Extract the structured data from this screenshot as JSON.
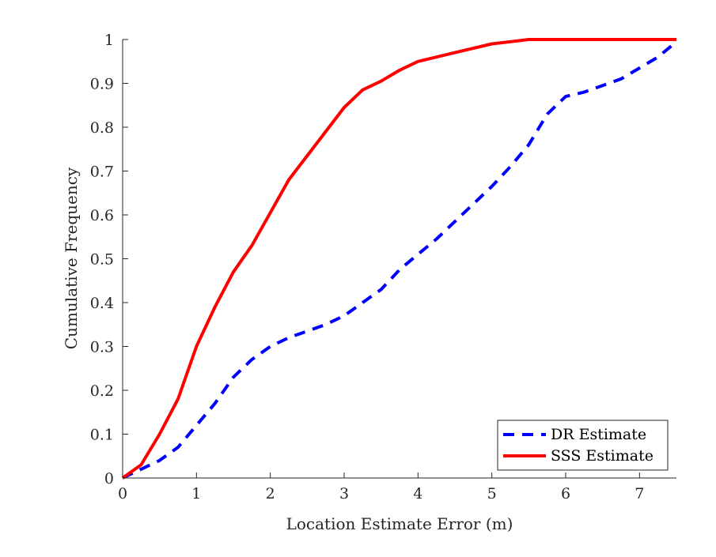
{
  "chart_data": {
    "type": "line",
    "title": "",
    "xlabel": "Location Estimate Error (m)",
    "ylabel": "Cumulative Frequency",
    "xlim": [
      0,
      7.5
    ],
    "ylim": [
      0,
      1
    ],
    "xticks": [
      0,
      1,
      2,
      3,
      4,
      5,
      6,
      7
    ],
    "yticks": [
      0,
      0.1,
      0.2,
      0.3,
      0.4,
      0.5,
      0.6,
      0.7,
      0.8,
      0.9,
      1
    ],
    "xtick_labels": [
      "0",
      "1",
      "2",
      "3",
      "4",
      "5",
      "6",
      "7"
    ],
    "ytick_labels": [
      "0",
      "0.1",
      "0.2",
      "0.3",
      "0.4",
      "0.5",
      "0.6",
      "0.7",
      "0.8",
      "0.9",
      "1"
    ],
    "grid": false,
    "legend_position": "bottom-right",
    "series": [
      {
        "name": "DR Estimate",
        "color": "#0000ff",
        "style": "dashed",
        "x": [
          0,
          0.25,
          0.5,
          0.75,
          1.0,
          1.25,
          1.5,
          1.75,
          2.0,
          2.25,
          2.5,
          2.75,
          3.0,
          3.25,
          3.5,
          3.75,
          4.0,
          4.25,
          4.5,
          4.75,
          5.0,
          5.25,
          5.5,
          5.75,
          6.0,
          6.25,
          6.5,
          6.75,
          7.0,
          7.25,
          7.5
        ],
        "y": [
          0,
          0.02,
          0.04,
          0.07,
          0.12,
          0.17,
          0.23,
          0.27,
          0.3,
          0.32,
          0.335,
          0.35,
          0.37,
          0.4,
          0.43,
          0.475,
          0.51,
          0.545,
          0.585,
          0.625,
          0.665,
          0.71,
          0.76,
          0.83,
          0.87,
          0.88,
          0.895,
          0.91,
          0.935,
          0.96,
          0.995
        ]
      },
      {
        "name": "SSS Estimate",
        "color": "#ff0000",
        "style": "solid",
        "x": [
          0,
          0.25,
          0.5,
          0.75,
          1.0,
          1.25,
          1.5,
          1.75,
          2.0,
          2.25,
          2.5,
          2.75,
          3.0,
          3.25,
          3.5,
          3.75,
          4.0,
          4.25,
          4.5,
          4.75,
          5.0,
          5.25,
          5.5,
          5.75,
          6.0,
          6.25,
          6.5,
          6.75,
          7.0,
          7.25,
          7.5
        ],
        "y": [
          0,
          0.03,
          0.1,
          0.18,
          0.3,
          0.39,
          0.47,
          0.53,
          0.605,
          0.68,
          0.735,
          0.79,
          0.845,
          0.885,
          0.905,
          0.93,
          0.95,
          0.96,
          0.97,
          0.98,
          0.99,
          0.995,
          1.0,
          1.0,
          1.0,
          1.0,
          1.0,
          1.0,
          1.0,
          1.0,
          1.0
        ]
      }
    ]
  }
}
